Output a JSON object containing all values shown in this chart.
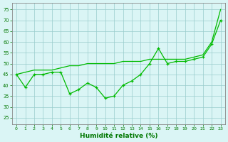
{
  "line1_x": [
    0,
    1,
    2,
    3,
    4,
    5,
    6,
    7,
    8,
    9,
    10,
    11,
    12,
    13,
    14,
    15,
    16,
    17,
    18,
    19,
    20,
    21,
    22,
    23
  ],
  "line1_y": [
    45,
    46,
    47,
    47,
    47,
    48,
    49,
    49,
    50,
    50,
    50,
    50,
    51,
    51,
    51,
    52,
    52,
    52,
    52,
    52,
    53,
    54,
    60,
    75
  ],
  "line2_x": [
    0,
    1,
    2,
    3,
    4,
    5,
    6,
    7,
    8,
    9,
    10,
    11,
    12,
    13,
    14,
    15,
    16,
    17,
    18,
    19,
    20,
    21,
    22,
    23
  ],
  "line2_y": [
    45,
    39,
    45,
    45,
    46,
    46,
    36,
    38,
    41,
    39,
    34,
    35,
    40,
    42,
    45,
    50,
    57,
    50,
    51,
    51,
    52,
    53,
    59,
    70
  ],
  "line_color": "#00BB00",
  "bg_color": "#DAF5F5",
  "grid_color": "#99CCCC",
  "xlabel": "Humidité relative (%)",
  "xlabel_color": "#007700",
  "ylabel_ticks": [
    25,
    30,
    35,
    40,
    45,
    50,
    55,
    60,
    65,
    70,
    75
  ],
  "ylim": [
    22,
    78
  ],
  "xlim": [
    -0.5,
    23.5
  ],
  "tick_color": "#007700",
  "axis_color": "#888888"
}
